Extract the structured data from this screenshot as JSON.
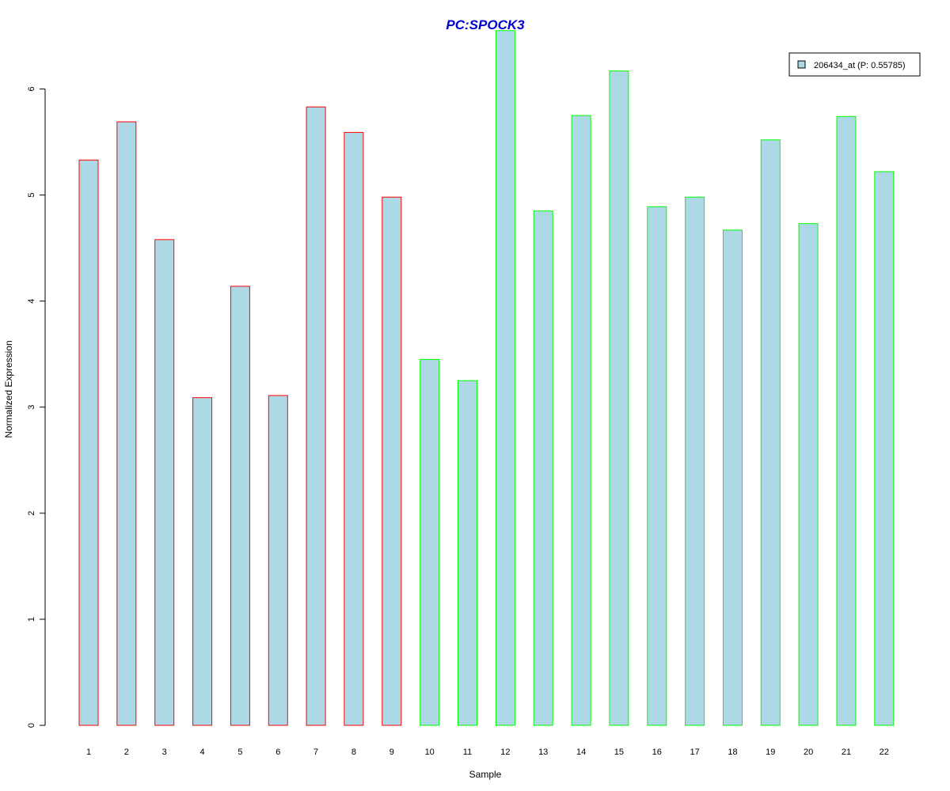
{
  "chart_data": {
    "type": "bar",
    "title": "PC:SPOCK3",
    "title_color": "#0000cc",
    "xlabel": "Sample",
    "ylabel": "Normalized Expression",
    "ylim": [
      0,
      6.6
    ],
    "yticks": [
      0,
      1,
      2,
      3,
      4,
      5,
      6
    ],
    "categories": [
      "1",
      "2",
      "3",
      "4",
      "5",
      "6",
      "7",
      "8",
      "9",
      "10",
      "11",
      "12",
      "13",
      "14",
      "15",
      "16",
      "17",
      "18",
      "19",
      "20",
      "21",
      "22"
    ],
    "series": [
      {
        "name": "206434_at (P: 0.55785)",
        "values": [
          5.33,
          5.69,
          4.58,
          3.09,
          4.14,
          3.11,
          5.83,
          5.59,
          4.98,
          3.45,
          3.25,
          6.55,
          4.85,
          5.75,
          6.17,
          4.89,
          4.98,
          4.67,
          5.52,
          4.73,
          5.74,
          5.22
        ]
      }
    ],
    "group_border_colors": [
      "#ff0000",
      "#ff0000",
      "#ff0000",
      "#ff0000",
      "#ff0000",
      "#ff0000",
      "#ff0000",
      "#ff0000",
      "#ff0000",
      "#00ff00",
      "#00ff00",
      "#00ff00",
      "#00ff00",
      "#00ff00",
      "#00ff00",
      "#00ff00",
      "#00ff00",
      "#00ff00",
      "#00ff00",
      "#00ff00",
      "#00ff00",
      "#00ff00"
    ],
    "bar_fill": "#add8e6",
    "grid": false,
    "legend_position": "top-right"
  }
}
